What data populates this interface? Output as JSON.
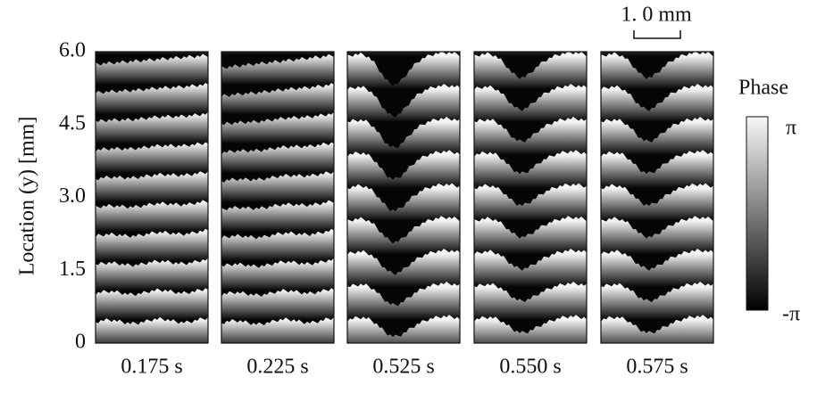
{
  "figure": {
    "y_axis_label": "Location (y) [mm]",
    "ylim": [
      0,
      6
    ],
    "yticks": [
      0,
      1.5,
      {
        "value": 3,
        "label": "3.0"
      },
      4.5,
      {
        "value": 6,
        "label": "6.0"
      }
    ],
    "panels": [
      "0.175 s",
      "0.225 s",
      "0.525 s",
      "0.550 s",
      "0.575 s"
    ],
    "scale_bar": "1. 0 mm",
    "colorbar": {
      "title": "Phase",
      "max_label": "π",
      "min_label": "-π"
    }
  }
}
